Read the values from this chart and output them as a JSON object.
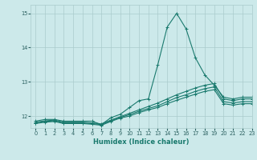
{
  "xlabel": "Humidex (Indice chaleur)",
  "xlim": [
    -0.5,
    23
  ],
  "ylim": [
    11.65,
    15.25
  ],
  "yticks": [
    12,
    13,
    14,
    15
  ],
  "xticks": [
    0,
    1,
    2,
    3,
    4,
    5,
    6,
    7,
    8,
    9,
    10,
    11,
    12,
    13,
    14,
    15,
    16,
    17,
    18,
    19,
    20,
    21,
    22,
    23
  ],
  "background_color": "#cce9ea",
  "grid_color": "#aacccc",
  "line_color": "#1a7a6e",
  "series": [
    [
      11.85,
      11.9,
      11.9,
      11.85,
      11.85,
      11.85,
      11.85,
      11.75,
      11.95,
      12.05,
      12.25,
      12.45,
      12.5,
      13.5,
      14.6,
      15.0,
      14.55,
      13.7,
      13.2,
      12.9,
      12.55,
      12.5,
      12.55,
      12.55
    ],
    [
      11.82,
      11.86,
      11.88,
      11.82,
      11.82,
      11.82,
      11.8,
      11.77,
      11.88,
      11.98,
      12.08,
      12.18,
      12.28,
      12.38,
      12.5,
      12.62,
      12.72,
      12.82,
      12.9,
      12.95,
      12.5,
      12.45,
      12.5,
      12.5
    ],
    [
      11.8,
      11.84,
      11.86,
      11.8,
      11.8,
      11.8,
      11.78,
      11.75,
      11.86,
      11.96,
      12.04,
      12.14,
      12.22,
      12.3,
      12.42,
      12.54,
      12.62,
      12.72,
      12.8,
      12.85,
      12.42,
      12.38,
      12.42,
      12.42
    ],
    [
      11.78,
      11.82,
      11.84,
      11.78,
      11.78,
      11.78,
      11.76,
      11.73,
      11.84,
      11.94,
      12.0,
      12.1,
      12.18,
      12.25,
      12.36,
      12.46,
      12.55,
      12.64,
      12.72,
      12.77,
      12.36,
      12.32,
      12.36,
      12.36
    ]
  ]
}
